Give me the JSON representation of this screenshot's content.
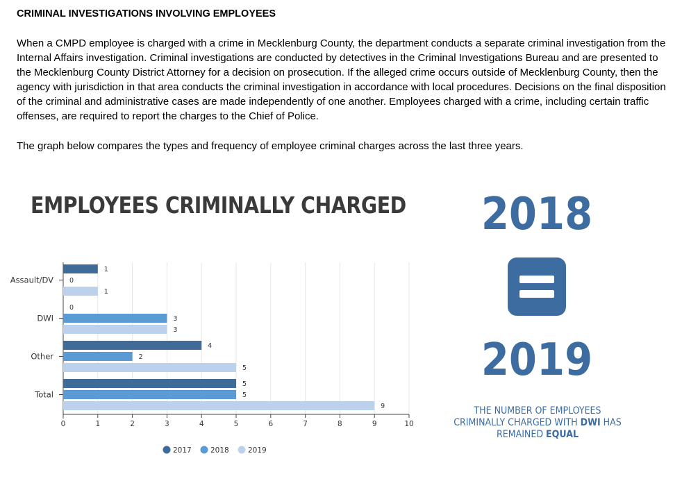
{
  "document": {
    "title": "CRIMINAL INVESTIGATIONS INVOLVING EMPLOYEES",
    "paragraph_1": "When a CMPD employee is charged with a crime in Mecklenburg County, the department conducts a separate criminal investigation from the Internal Affairs investigation. Criminal investigations are conducted by detectives in the Criminal Investigations Bureau and are presented to the Mecklenburg County District Attorney for a decision on prosecution.  If the alleged crime occurs outside of Mecklenburg County, then the agency with jurisdiction in that area conducts the criminal investigation in accordance with local procedures. Decisions on the final disposition of the criminal and administrative cases are made independently of one another. Employees charged with a crime, including certain traffic offenses, are required to report the charges to the Chief of Police.",
    "paragraph_2": "The graph below compares the types and frequency of employee criminal charges across the last three years."
  },
  "infographic": {
    "year_top": "2018",
    "year_bottom": "2019",
    "note_part1": "THE NUMBER OF EMPLOYEES CRIMINALLY CHARGED WITH ",
    "note_bold1": "DWI",
    "note_part2": " HAS REMAINED ",
    "note_bold2": "EQUAL",
    "icon": "equals-sign-icon",
    "accent_color": "#3d6da0"
  },
  "chart_data": {
    "type": "bar",
    "orientation": "horizontal",
    "title": "EMPLOYEES CRIMINALLY CHARGED",
    "categories": [
      "Assault/DV",
      "DWI",
      "Other",
      "Total"
    ],
    "series": [
      {
        "name": "2017",
        "values": [
          1,
          0,
          4,
          5
        ],
        "color": "#3f6b99"
      },
      {
        "name": "2018",
        "values": [
          0,
          3,
          2,
          5
        ],
        "color": "#5b9bd5"
      },
      {
        "name": "2019",
        "values": [
          1,
          3,
          5,
          9
        ],
        "color": "#bcd2ec"
      }
    ],
    "xlim": [
      0,
      10
    ],
    "xticks": [
      0,
      1,
      2,
      3,
      4,
      5,
      6,
      7,
      8,
      9,
      10
    ],
    "grid": true,
    "legend": "bottom-center",
    "data_labels": true
  }
}
